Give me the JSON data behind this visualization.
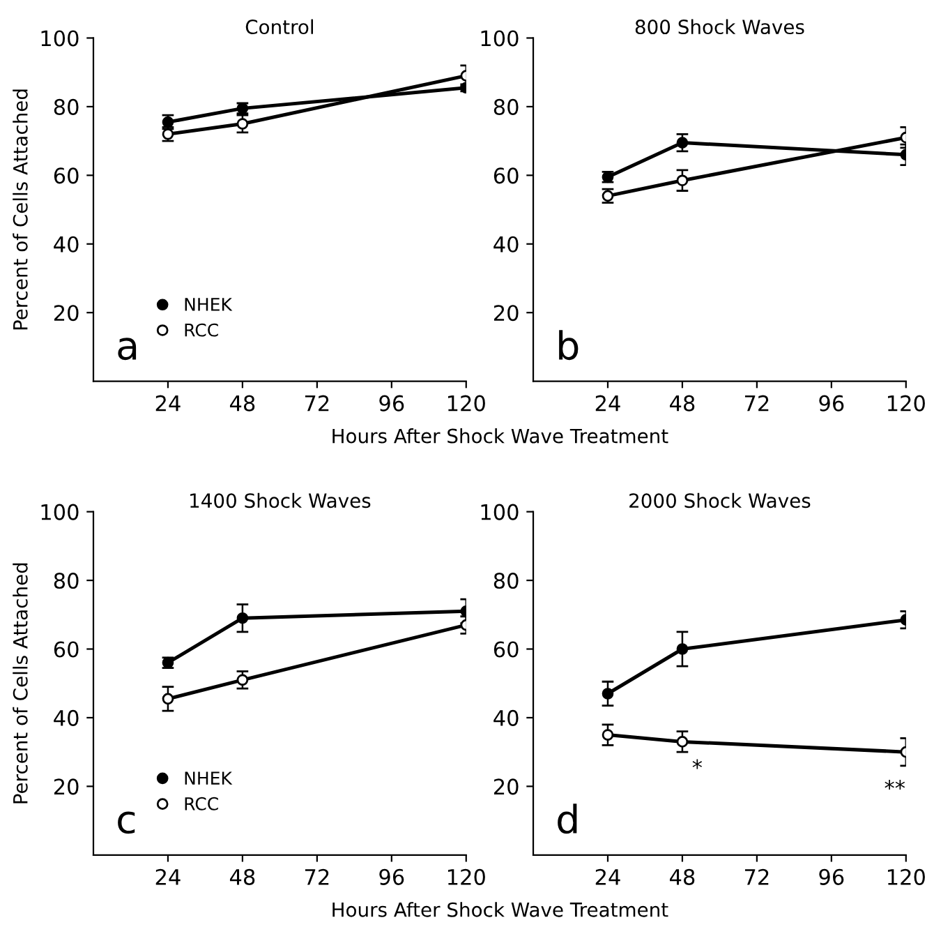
{
  "chart_data": [
    {
      "type": "line",
      "title": "Control",
      "xlabel": "Hours After Shock Wave Treatment",
      "ylabel": "Percent of Cells Attached",
      "x": [
        24,
        48,
        120
      ],
      "xlim": [
        0,
        120
      ],
      "ylim": [
        0,
        100
      ],
      "xticks": [
        24,
        48,
        72,
        96,
        120
      ],
      "yticks": [
        20,
        40,
        60,
        80,
        100
      ],
      "marker": "circle",
      "legend": "bottom left",
      "annotations": [
        "a"
      ],
      "series": [
        {
          "name": "NHEK",
          "color": "#000000",
          "values": [
            75.5,
            79.5,
            85.5
          ],
          "errors": [
            2,
            1.5,
            1
          ]
        },
        {
          "name": "RCC",
          "color": "#000000",
          "values": [
            72,
            75,
            89
          ],
          "errors": [
            2,
            2.5,
            3
          ]
        }
      ]
    },
    {
      "type": "line",
      "title": "800 Shock Waves",
      "x": [
        24,
        48,
        120
      ],
      "xlim": [
        0,
        120
      ],
      "ylim": [
        0,
        100
      ],
      "xticks": [
        24,
        48,
        72,
        96,
        120
      ],
      "yticks": [
        20,
        40,
        60,
        80,
        100
      ],
      "marker": "circle",
      "annotations": [
        "b"
      ],
      "series": [
        {
          "color": "#000000",
          "values": [
            59.5,
            69.5,
            66
          ],
          "errors": [
            1.5,
            2.5,
            3
          ]
        },
        {
          "color": "#000000",
          "values": [
            54,
            58.5,
            71
          ],
          "errors": [
            2,
            3,
            3
          ]
        }
      ]
    },
    {
      "type": "line",
      "title": "1400 Shock Waves",
      "xlabel": "Hours After Shock Wave Treatment",
      "ylabel": "Percent of Cells Attached",
      "x": [
        24,
        48,
        120
      ],
      "xlim": [
        0,
        120
      ],
      "ylim": [
        0,
        100
      ],
      "xticks": [
        24,
        48,
        72,
        96,
        120
      ],
      "yticks": [
        20,
        40,
        60,
        80,
        100
      ],
      "marker": "circle",
      "legend": "bottom left",
      "annotations": [
        "c"
      ],
      "series": [
        {
          "name": "NHEK",
          "color": "#000000",
          "values": [
            56,
            69,
            71
          ],
          "errors": [
            1.5,
            4,
            3.5
          ]
        },
        {
          "name": "RCC",
          "color": "#000000",
          "values": [
            45.5,
            51,
            67
          ],
          "errors": [
            3.5,
            2.5,
            2.5
          ]
        }
      ]
    },
    {
      "type": "line",
      "title": "2000 Shock Waves",
      "x": [
        24,
        48,
        120
      ],
      "xlim": [
        0,
        120
      ],
      "ylim": [
        0,
        100
      ],
      "xticks": [
        24,
        48,
        72,
        96,
        120
      ],
      "yticks": [
        20,
        40,
        60,
        80,
        100
      ],
      "marker": "circle",
      "annotations": [
        "d",
        "*",
        "**"
      ],
      "series": [
        {
          "color": "#000000",
          "values": [
            47,
            60,
            68.5
          ],
          "errors": [
            3.5,
            5,
            2.5
          ]
        },
        {
          "color": "#000000",
          "values": [
            35,
            33,
            30
          ],
          "errors": [
            3,
            3,
            4
          ]
        }
      ]
    }
  ]
}
